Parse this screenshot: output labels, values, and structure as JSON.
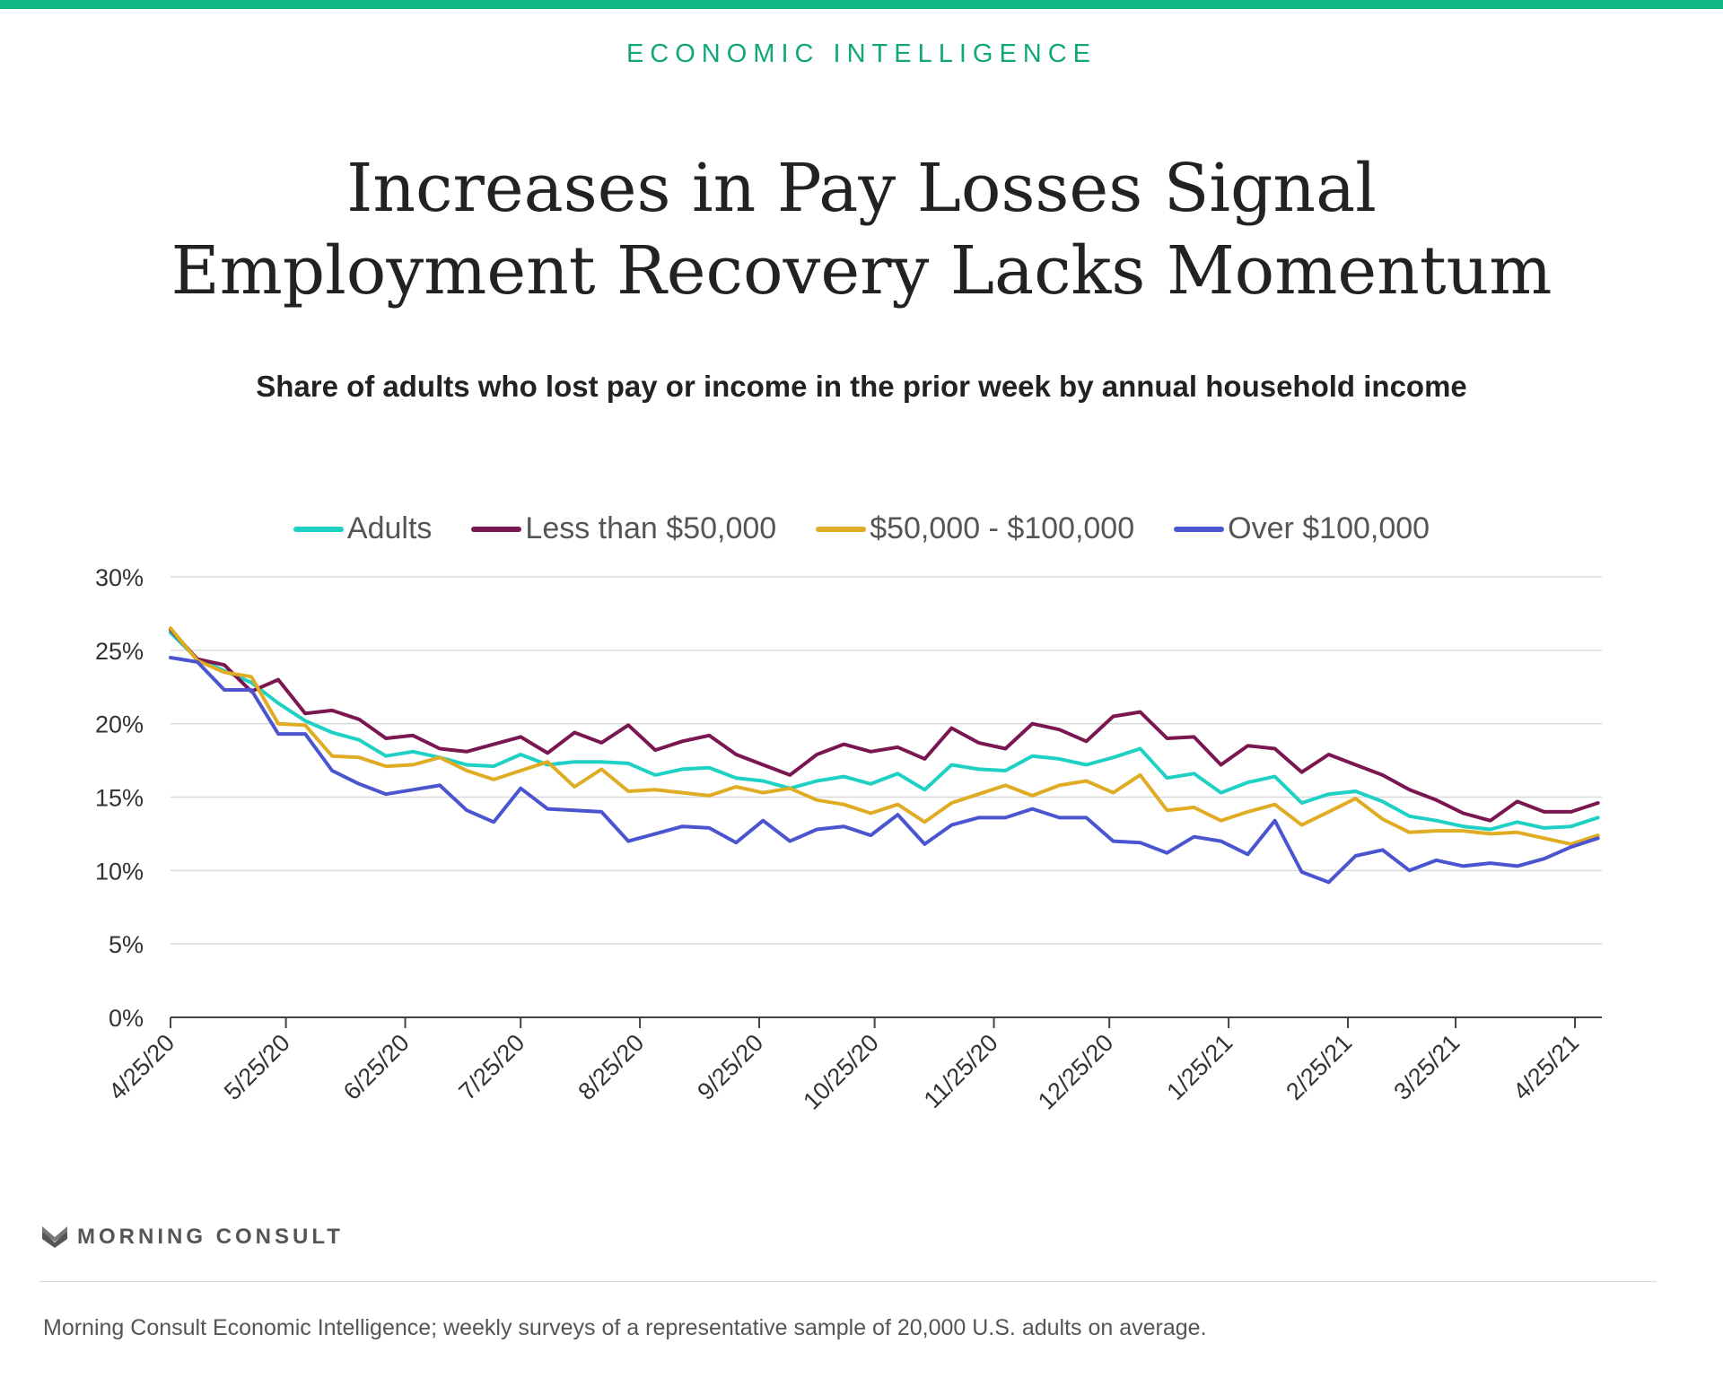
{
  "header": {
    "kicker": "ECONOMIC INTELLIGENCE",
    "title_line1": "Increases in Pay Losses Signal",
    "title_line2": "Employment Recovery Lacks Momentum",
    "subtitle": "Share of adults who lost pay or income in the prior week by annual household income"
  },
  "colors": {
    "accent": "#12b886",
    "adults": "#1fd1c4",
    "less50": "#7a1650",
    "mid": "#e0ac24",
    "over100": "#4a55cf"
  },
  "chart_data": {
    "type": "line",
    "title": "",
    "xlabel": "",
    "ylabel": "",
    "ylim": [
      0,
      30
    ],
    "y_ticks": [
      "0%",
      "5%",
      "10%",
      "15%",
      "20%",
      "25%",
      "30%"
    ],
    "x_tick_labels": [
      "4/25/20",
      "5/25/20",
      "6/25/20",
      "7/25/20",
      "8/25/20",
      "9/25/20",
      "10/25/20",
      "11/25/20",
      "12/25/20",
      "1/25/21",
      "2/25/21",
      "3/25/21",
      "4/25/21"
    ],
    "x_tick_dates": [
      "2020-04-25",
      "2020-05-25",
      "2020-06-25",
      "2020-07-25",
      "2020-08-25",
      "2020-09-25",
      "2020-10-25",
      "2020-11-25",
      "2020-12-25",
      "2021-01-25",
      "2021-02-25",
      "2021-03-25",
      "2021-04-25"
    ],
    "x_start": "2020-04-25",
    "x_end": "2021-05-02",
    "grid": true,
    "legend_position": "top",
    "x": [
      "2020-04-25",
      "2020-05-02",
      "2020-05-09",
      "2020-05-16",
      "2020-05-23",
      "2020-05-30",
      "2020-06-06",
      "2020-06-13",
      "2020-06-20",
      "2020-06-27",
      "2020-07-04",
      "2020-07-11",
      "2020-07-18",
      "2020-07-25",
      "2020-08-01",
      "2020-08-08",
      "2020-08-15",
      "2020-08-22",
      "2020-08-29",
      "2020-09-05",
      "2020-09-12",
      "2020-09-19",
      "2020-09-26",
      "2020-10-03",
      "2020-10-10",
      "2020-10-17",
      "2020-10-24",
      "2020-10-31",
      "2020-11-07",
      "2020-11-14",
      "2020-11-21",
      "2020-11-28",
      "2020-12-05",
      "2020-12-12",
      "2020-12-19",
      "2020-12-26",
      "2021-01-02",
      "2021-01-09",
      "2021-01-16",
      "2021-01-23",
      "2021-01-30",
      "2021-02-06",
      "2021-02-13",
      "2021-02-20",
      "2021-02-27",
      "2021-03-06",
      "2021-03-13",
      "2021-03-20",
      "2021-03-27",
      "2021-04-03",
      "2021-04-10",
      "2021-04-17",
      "2021-04-24",
      "2021-05-01"
    ],
    "series": [
      {
        "name": "Adults",
        "color": "#1fd1c4",
        "values": [
          26.2,
          24.4,
          23.6,
          22.8,
          21.4,
          20.2,
          19.4,
          18.9,
          17.8,
          18.1,
          17.7,
          17.2,
          17.1,
          17.9,
          17.2,
          17.4,
          17.4,
          17.3,
          16.5,
          16.9,
          17.0,
          16.3,
          16.1,
          15.6,
          16.1,
          16.4,
          15.9,
          16.6,
          15.5,
          17.2,
          16.9,
          16.8,
          17.8,
          17.6,
          17.2,
          17.7,
          18.3,
          16.3,
          16.6,
          15.3,
          16.0,
          16.4,
          14.6,
          15.2,
          15.4,
          14.7,
          13.7,
          13.4,
          13.0,
          12.8,
          13.3,
          12.9,
          13.0,
          13.6
        ]
      },
      {
        "name": "Less than $50,000",
        "color": "#7a1650",
        "values": [
          26.4,
          24.4,
          24.0,
          22.2,
          23.0,
          20.7,
          20.9,
          20.3,
          19.0,
          19.2,
          18.3,
          18.1,
          18.6,
          19.1,
          18.0,
          19.4,
          18.7,
          19.9,
          18.2,
          18.8,
          19.2,
          17.9,
          17.2,
          16.5,
          17.9,
          18.6,
          18.1,
          18.4,
          17.6,
          19.7,
          18.7,
          18.3,
          20.0,
          19.6,
          18.8,
          20.5,
          20.8,
          19.0,
          19.1,
          17.2,
          18.5,
          18.3,
          16.7,
          17.9,
          17.2,
          16.5,
          15.5,
          14.8,
          13.9,
          13.4,
          14.7,
          14.0,
          14.0,
          14.6
        ]
      },
      {
        "name": "$50,000 - $100,000",
        "color": "#e0ac24",
        "values": [
          26.5,
          24.3,
          23.5,
          23.2,
          20.0,
          19.9,
          17.8,
          17.7,
          17.1,
          17.2,
          17.7,
          16.8,
          16.2,
          16.8,
          17.4,
          15.7,
          16.9,
          15.4,
          15.5,
          15.3,
          15.1,
          15.7,
          15.3,
          15.6,
          14.8,
          14.5,
          13.9,
          14.5,
          13.3,
          14.6,
          15.2,
          15.8,
          15.1,
          15.8,
          16.1,
          15.3,
          16.5,
          14.1,
          14.3,
          13.4,
          14.0,
          14.5,
          13.1,
          14.0,
          14.9,
          13.5,
          12.6,
          12.7,
          12.7,
          12.5,
          12.6,
          12.2,
          11.8,
          12.4
        ]
      },
      {
        "name": "Over $100,000",
        "color": "#4a55cf",
        "values": [
          24.5,
          24.2,
          22.3,
          22.3,
          19.3,
          19.3,
          16.8,
          15.9,
          15.2,
          15.5,
          15.8,
          14.1,
          13.3,
          15.6,
          14.2,
          14.1,
          14.0,
          12.0,
          12.5,
          13.0,
          12.9,
          11.9,
          13.4,
          12.0,
          12.8,
          13.0,
          12.4,
          13.8,
          11.8,
          13.1,
          13.6,
          13.6,
          14.2,
          13.6,
          13.6,
          12.0,
          11.9,
          11.2,
          12.3,
          12.0,
          11.1,
          13.4,
          9.9,
          9.2,
          11.0,
          11.4,
          10.0,
          10.7,
          10.3,
          10.5,
          10.3,
          10.8,
          11.6,
          12.2
        ]
      }
    ]
  },
  "footer": {
    "brand": "MORNING CONSULT",
    "source": "Morning Consult Economic Intelligence; weekly surveys of a representative sample of 20,000 U.S. adults on average."
  }
}
